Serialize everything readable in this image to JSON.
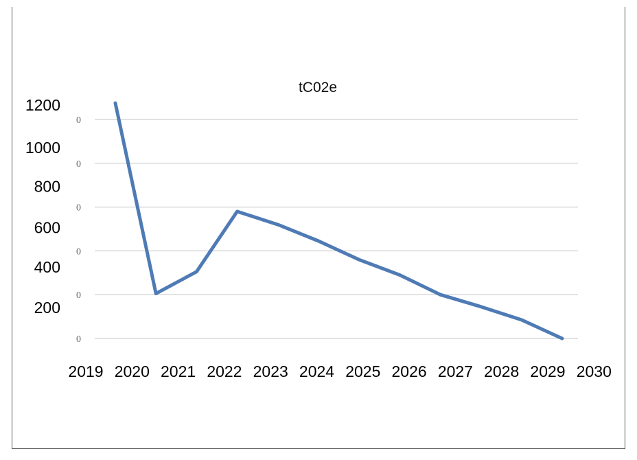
{
  "chart_data": {
    "type": "line",
    "title": "tC02e",
    "xlabel": "",
    "ylabel": "",
    "x_tick_labels": [
      "2019",
      "2020",
      "2021",
      "2022",
      "2023",
      "2024",
      "2025",
      "2026",
      "2027",
      "2028",
      "2029",
      "2030"
    ],
    "y_tick_labels": [
      "1200",
      "1000",
      "800",
      "600",
      "400",
      "200"
    ],
    "y_tick_values": [
      1200,
      1000,
      800,
      600,
      400,
      200
    ],
    "y_inner_tick_labels": [
      "0",
      "0",
      "0",
      "0",
      "0",
      "0"
    ],
    "ylim": [
      0,
      1075
    ],
    "grid": true,
    "legend": "none",
    "series": [
      {
        "color": "#4f7bb5",
        "points": [
          {
            "x": 2020,
            "y": 1075
          },
          {
            "x": 2021,
            "y": 205
          },
          {
            "x": 2022,
            "y": 305
          },
          {
            "x": 2023,
            "y": 580
          },
          {
            "x": 2024,
            "y": 520
          },
          {
            "x": 2025,
            "y": 445
          },
          {
            "x": 2026,
            "y": 360
          },
          {
            "x": 2027,
            "y": 290
          },
          {
            "x": 2028,
            "y": 200
          },
          {
            "x": 2029,
            "y": 145
          },
          {
            "x": 2030,
            "y": 85
          },
          {
            "x": 2031,
            "y": 0
          }
        ]
      }
    ]
  }
}
